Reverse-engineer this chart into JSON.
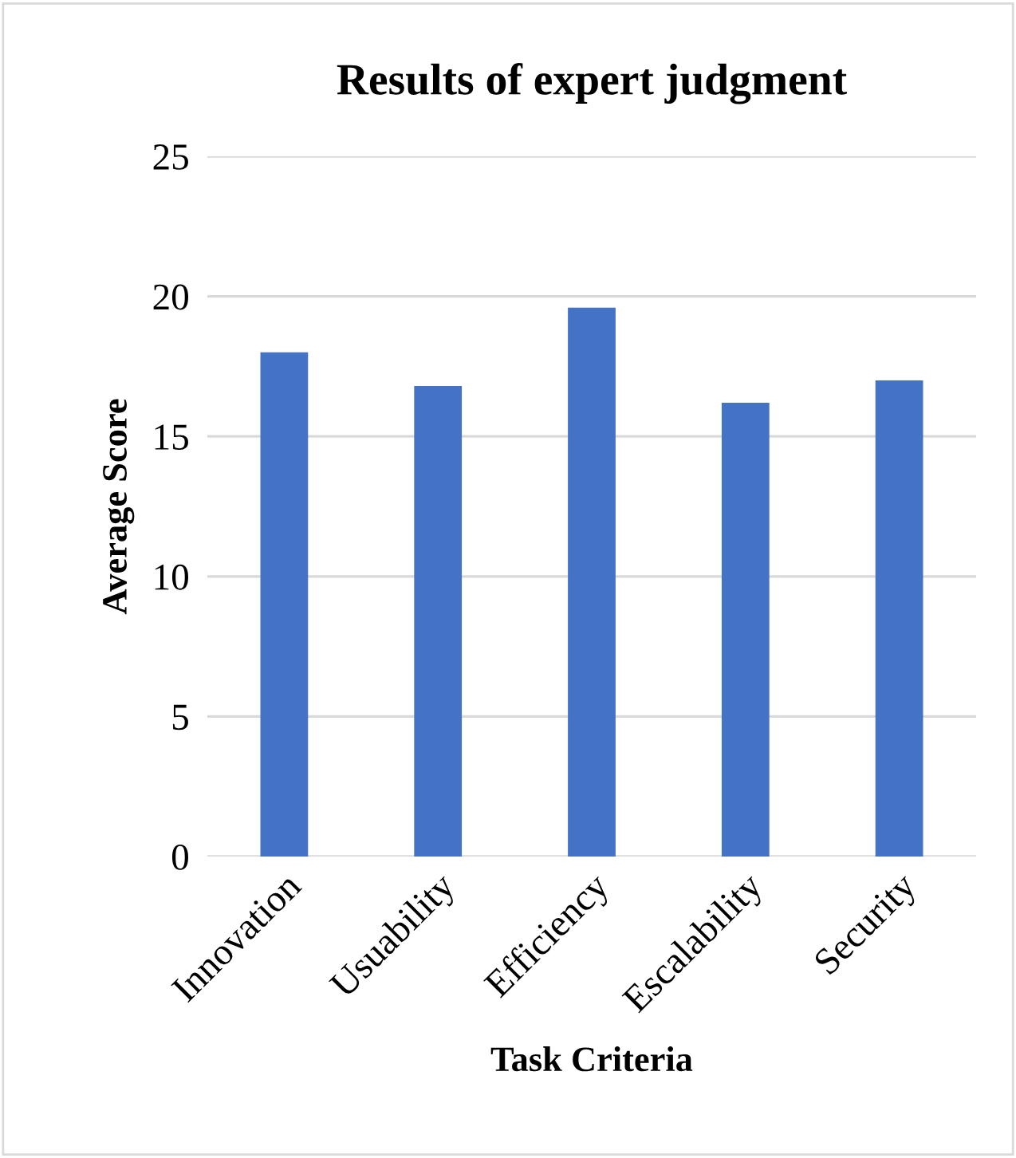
{
  "chart_data": {
    "type": "bar",
    "title": "Results of expert judgment",
    "xlabel": "Task Criteria",
    "ylabel": "Average Score",
    "categories": [
      "Innovation",
      "Usuability",
      "Efficiency",
      "Escalability",
      "Security"
    ],
    "values": [
      18.0,
      16.8,
      19.6,
      16.2,
      17.0
    ],
    "color": "#4472c4",
    "ylim": [
      0,
      25
    ],
    "yticks": [
      0,
      5,
      10,
      15,
      20,
      25
    ],
    "grid": "y",
    "legend": false
  }
}
